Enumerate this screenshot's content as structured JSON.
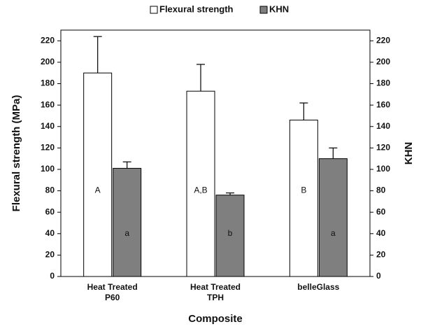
{
  "chart_data": {
    "type": "bar",
    "categories": [
      [
        "Heat Treated",
        "P60"
      ],
      [
        "Heat Treated",
        "TPH"
      ],
      [
        "belleGlass"
      ]
    ],
    "series": [
      {
        "name": "Flexural strength",
        "axis": "left",
        "color": "#ffffff",
        "values": [
          190,
          173,
          146
        ],
        "errors": [
          34,
          25,
          16
        ],
        "labels": [
          "A",
          "A,B",
          "B"
        ]
      },
      {
        "name": "KHN",
        "axis": "right",
        "color": "#7f7f7f",
        "values": [
          101,
          76,
          110
        ],
        "errors": [
          6,
          2,
          10
        ],
        "labels": [
          "a",
          "b",
          "a"
        ]
      }
    ],
    "xlabel": "Composite",
    "ylabel": "Flexural strength (MPa)",
    "ylabel_right": "KHN",
    "ylim": [
      0,
      230
    ],
    "ylim_right": [
      0,
      230
    ],
    "yticks": [
      0,
      20,
      40,
      60,
      80,
      100,
      120,
      140,
      160,
      180,
      200,
      220
    ],
    "legend_position": "top-center",
    "grid": false
  }
}
